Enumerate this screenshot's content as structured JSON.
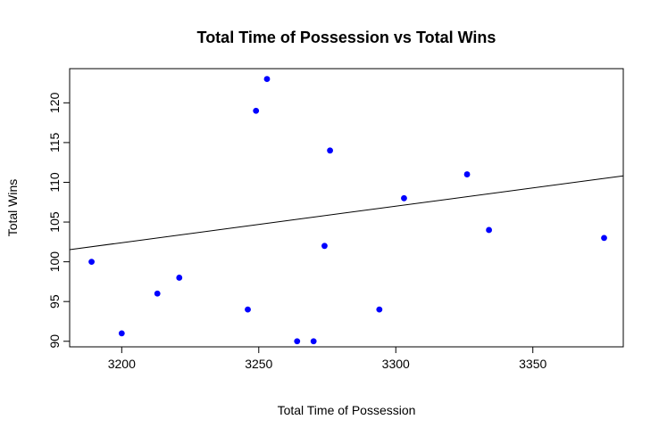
{
  "chart_data": {
    "type": "scatter",
    "title": "Total Time of Possession vs Total Wins",
    "xlabel": "Total Time of Possession",
    "ylabel": "Total Wins",
    "xlim": [
      3181,
      3383
    ],
    "ylim": [
      89.3,
      124.3
    ],
    "x_ticks": [
      3200,
      3250,
      3300,
      3350
    ],
    "y_ticks": [
      90,
      95,
      100,
      105,
      110,
      115,
      120
    ],
    "point_color": "#0000ff",
    "line_color": "#000000",
    "grid": false,
    "points": [
      {
        "x": 3189,
        "y": 100
      },
      {
        "x": 3200,
        "y": 91
      },
      {
        "x": 3213,
        "y": 96
      },
      {
        "x": 3221,
        "y": 98
      },
      {
        "x": 3246,
        "y": 94
      },
      {
        "x": 3249,
        "y": 119
      },
      {
        "x": 3253,
        "y": 123
      },
      {
        "x": 3264,
        "y": 90
      },
      {
        "x": 3270,
        "y": 90
      },
      {
        "x": 3274,
        "y": 102
      },
      {
        "x": 3276,
        "y": 114
      },
      {
        "x": 3294,
        "y": 94
      },
      {
        "x": 3303,
        "y": 108
      },
      {
        "x": 3326,
        "y": 111
      },
      {
        "x": 3334,
        "y": 104
      },
      {
        "x": 3376,
        "y": 103
      }
    ],
    "regression_line": {
      "intercept": -44.67,
      "slope": 0.04596
    }
  }
}
